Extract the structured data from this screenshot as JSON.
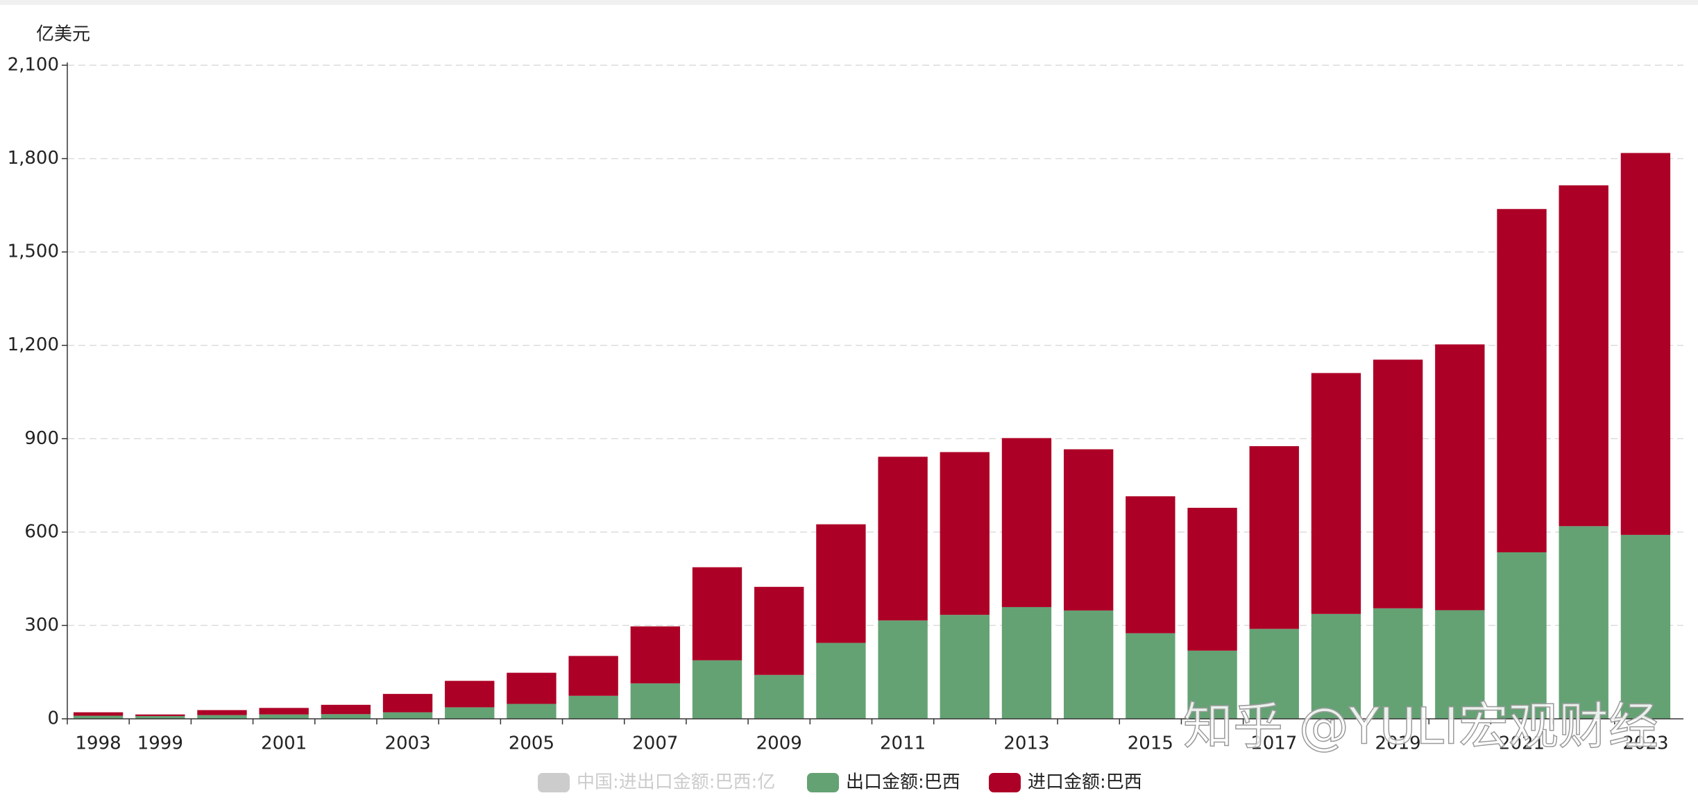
{
  "chart_data": {
    "type": "stacked_bar",
    "y_axis_label": "亿美元",
    "categories": [
      "1998",
      "1999",
      null,
      "2001",
      null,
      "2003",
      null,
      "2005",
      null,
      "2007",
      null,
      "2009",
      null,
      "2011",
      null,
      "2013",
      null,
      "2015",
      null,
      "2017",
      null,
      "2019",
      null,
      "2021",
      null,
      "2023"
    ],
    "series": [
      {
        "name": "出口金额:巴西",
        "color": "#64a274",
        "values": [
          10,
          9,
          12,
          14,
          15,
          21,
          37,
          48,
          74,
          114,
          188,
          141,
          244,
          316,
          334,
          359,
          348,
          275,
          219,
          289,
          337,
          355,
          349,
          535,
          619,
          591
        ]
      },
      {
        "name": "进口金额:巴西",
        "color": "#ad0026",
        "values": [
          11,
          5,
          16,
          21,
          30,
          59,
          85,
          100,
          128,
          183,
          299,
          283,
          381,
          526,
          523,
          543,
          518,
          440,
          459,
          587,
          774,
          799,
          854,
          1103,
          1095,
          1227
        ]
      }
    ],
    "inactive_legend": [
      {
        "name": "中国:进出口金额:巴西:亿",
        "color": "#cccccc"
      }
    ],
    "ylim": [
      0,
      2100
    ],
    "yticks": [
      0,
      300,
      600,
      900,
      {
        "value": 1200,
        "label": "1,200"
      },
      {
        "value": 1500,
        "label": "1,500"
      },
      {
        "value": 1800,
        "label": "1,800"
      },
      {
        "value": 2100,
        "label": "2,100"
      }
    ],
    "grid": true,
    "watermark": "知乎 @YULI宏观财经"
  }
}
